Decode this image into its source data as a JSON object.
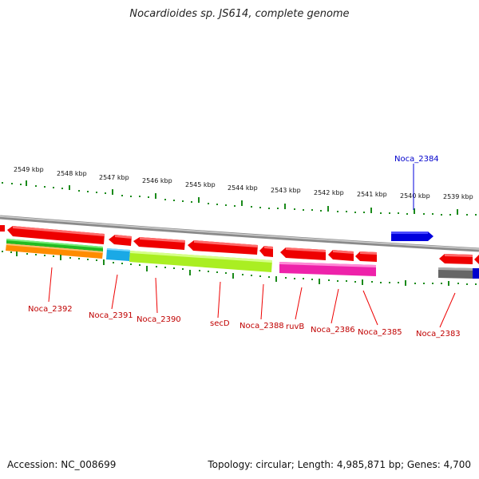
{
  "title": "Nocardioides sp. JS614, complete genome",
  "accession_text": "Accession: NC_008699",
  "topology_text": "Topology: circular; Length: 4,985,871 bp; Genes: 4,700",
  "scale_labels": [
    "2549 kbp",
    "2548 kbp",
    "2547 kbp",
    "2546 kbp",
    "2545 kbp",
    "2544 kbp",
    "2543 kbp",
    "2542 kbp",
    "2541 kbp",
    "2540 kbp",
    "2539 kbp"
  ],
  "gene_labels": [
    "Noca_2392",
    "Noca_2391",
    "Noca_2390",
    "secD",
    "Noca_2388",
    "ruvB",
    "Noca_2386",
    "Noca_2385",
    "Noca_2383",
    "Noca_2384"
  ],
  "colors": {
    "forward_gene": "#0000dd",
    "reverse_gene": "#ee0000",
    "label_red": "#c00000",
    "label_blue": "#0000cc",
    "tick_green": "#1a8a1a",
    "backbone": "#888888"
  }
}
